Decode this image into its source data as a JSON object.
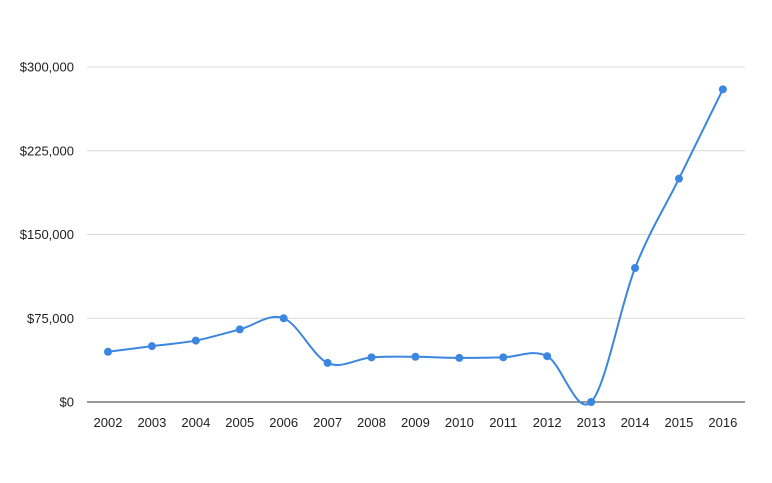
{
  "chart_data": {
    "type": "line",
    "title": "",
    "xlabel": "",
    "ylabel": "",
    "categories": [
      "2002",
      "2003",
      "2004",
      "2005",
      "2006",
      "2007",
      "2008",
      "2009",
      "2010",
      "2011",
      "2012",
      "2013",
      "2014",
      "2015",
      "2016"
    ],
    "series": [
      {
        "values": [
          45000,
          50000,
          55000,
          65000,
          75000,
          35000,
          40000,
          40500,
          39500,
          40000,
          41000,
          0,
          120000,
          200000,
          280000
        ],
        "color": "#3a86e0"
      }
    ],
    "ylim": [
      0,
      300000
    ],
    "y_ticks": [
      0,
      75000,
      150000,
      225000,
      300000
    ],
    "y_tick_labels": [
      "$0",
      "$75,000",
      "$150,000",
      "$225,000",
      "$300,000"
    ],
    "grid": true,
    "smooth": true,
    "markers": true,
    "legend": "none"
  }
}
